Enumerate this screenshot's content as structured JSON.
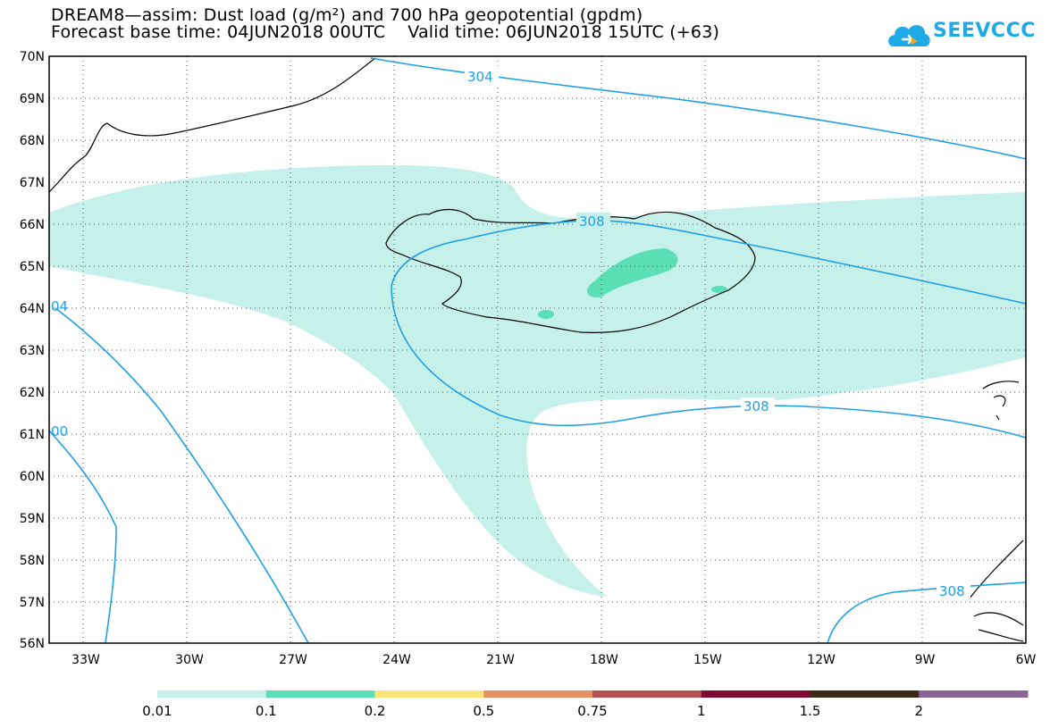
{
  "header": {
    "title_line1": "DREAM8—assim: Dust load (g/m²) and 700 hPa geopotential (gpdm)",
    "title_line2": "Forecast base time: 04JUN2018 00UTC    Valid time: 06JUN2018 15UTC (+63)"
  },
  "logo": {
    "text": "SEEVCCC",
    "icon": "cloud-icon",
    "color": "#1eaae6"
  },
  "map": {
    "lat_labels": [
      "70N",
      "69N",
      "68N",
      "67N",
      "66N",
      "65N",
      "64N",
      "63N",
      "62N",
      "61N",
      "60N",
      "59N",
      "58N",
      "57N",
      "56N"
    ],
    "lon_labels": [
      "33W",
      "30W",
      "27W",
      "24W",
      "21W",
      "18W",
      "15W",
      "12W",
      "9W",
      "6W"
    ],
    "contour_labels": [
      "304",
      "308",
      "308",
      "308",
      "04",
      "00"
    ],
    "contour_color": "#1ea0e6"
  },
  "colorbar": {
    "colors": [
      "#c6f0ea",
      "#5ae0b4",
      "#fae678",
      "#e69064",
      "#b45050",
      "#820a32",
      "#3c2814",
      "#8c6496"
    ],
    "labels": [
      "0.01",
      "0.1",
      "0.2",
      "0.5",
      "0.75",
      "1",
      "1.5",
      "2"
    ]
  }
}
